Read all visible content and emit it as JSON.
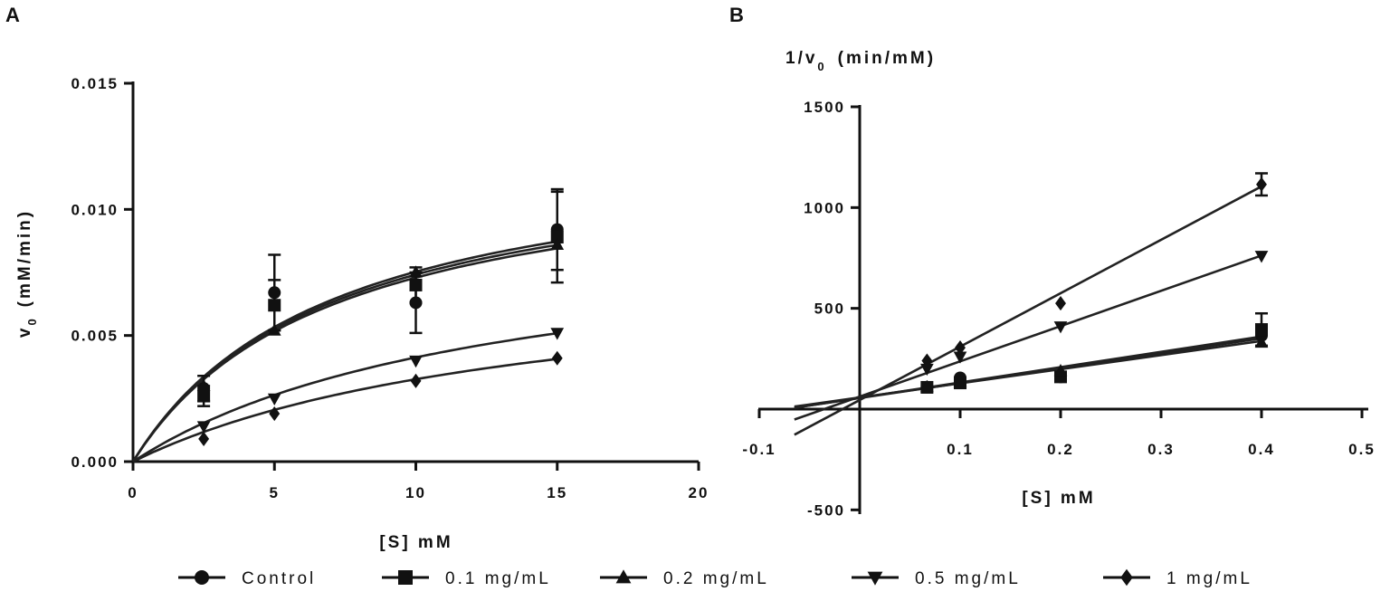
{
  "figure_labels": {
    "A": "A",
    "B": "B"
  },
  "legend": [
    {
      "name": "Control",
      "marker": "circle"
    },
    {
      "name": "0.1 mg/mL",
      "marker": "square"
    },
    {
      "name": "0.2 mg/mL",
      "marker": "triangle-up"
    },
    {
      "name": "0.5 mg/mL",
      "marker": "triangle-down"
    },
    {
      "name": "1 mg/mL",
      "marker": "diamond"
    }
  ],
  "chart_data": [
    {
      "panel": "A",
      "type": "scatter",
      "xlabel": "[S] mM",
      "ylabel": "v0 (mM/min)",
      "ylabel_main": "v",
      "ylabel_sub": "0",
      "ylabel_rest": "(mM/min)",
      "xlim": [
        0,
        20
      ],
      "ylim": [
        0,
        0.015
      ],
      "xticks": [
        0,
        5,
        10,
        15,
        20
      ],
      "xtick_labels": [
        "0",
        "5",
        "10",
        "15",
        "20"
      ],
      "yticks": [
        0,
        0.005,
        0.01,
        0.015
      ],
      "ytick_labels": [
        "0.000",
        "0.005",
        "0.010",
        "0.015"
      ],
      "x": [
        2.5,
        5,
        10,
        15
      ],
      "series": [
        {
          "name": "Control",
          "marker": "circle",
          "values": [
            0.0029,
            0.0067,
            0.0063,
            0.0092
          ],
          "errors": [
            0.0005,
            0.0015,
            0.0012,
            0.0016
          ],
          "fit": {
            "vmax": 0.0128,
            "km": 7.0
          }
        },
        {
          "name": "0.1 mg/mL",
          "marker": "square",
          "values": [
            0.0026,
            0.0062,
            0.007,
            0.0089
          ],
          "errors": [
            0.0004,
            0.001,
            0.0007,
            0.0018
          ],
          "fit": {
            "vmax": 0.0126,
            "km": 7.0
          }
        },
        {
          "name": "0.2 mg/mL",
          "marker": "triangle-up",
          "values": [
            0.003,
            0.0052,
            0.0075,
            0.0086
          ],
          "errors": [
            0,
            0,
            0,
            0
          ],
          "fit": {
            "vmax": 0.0124,
            "km": 7.0
          }
        },
        {
          "name": "0.5 mg/mL",
          "marker": "triangle-down",
          "values": [
            0.0014,
            0.0025,
            0.004,
            0.0051
          ],
          "errors": [
            0,
            0,
            0,
            0
          ],
          "fit": {
            "vmax": 0.0095,
            "km": 13.0
          }
        },
        {
          "name": "1 mg/mL",
          "marker": "diamond",
          "values": [
            0.0009,
            0.0019,
            0.0032,
            0.0041
          ],
          "errors": [
            0,
            0,
            0,
            0
          ],
          "fit": {
            "vmax": 0.008,
            "km": 14.5
          }
        }
      ]
    },
    {
      "panel": "B",
      "type": "scatter",
      "xlabel": "[S] mM",
      "ylabel": "1/v0 (min/mM)",
      "ylabel_main": "1/v",
      "ylabel_sub": "0",
      "ylabel_rest": "(min/mM)",
      "xlim": [
        -0.1,
        0.5
      ],
      "ylim": [
        -500,
        1500
      ],
      "xticks": [
        -0.1,
        0.1,
        0.2,
        0.3,
        0.4,
        0.5
      ],
      "xtick_labels": [
        "-0.1",
        "0.1",
        "0.2",
        "0.3",
        "0.4",
        "0.5"
      ],
      "yticks": [
        -500,
        500,
        1000,
        1500
      ],
      "ytick_labels": [
        "-500",
        "500",
        "1000",
        "1500"
      ],
      "x": [
        0.067,
        0.1,
        0.2,
        0.4
      ],
      "fit_range": [
        -0.065,
        0.4
      ],
      "series": [
        {
          "name": "Control",
          "marker": "circle",
          "values": [
            109,
            155,
            160,
            365
          ],
          "errors": [
            0,
            0,
            0,
            0
          ],
          "fit": {
            "slope": 760,
            "intercept": 56
          }
        },
        {
          "name": "0.1 mg/mL",
          "marker": "square",
          "values": [
            108,
            130,
            160,
            395
          ],
          "errors": [
            0,
            0,
            0,
            80
          ],
          "fit": {
            "slope": 740,
            "intercept": 55
          }
        },
        {
          "name": "0.2 mg/mL",
          "marker": "triangle-up",
          "values": [
            110,
            135,
            190,
            330
          ],
          "errors": [
            0,
            0,
            0,
            0
          ],
          "fit": {
            "slope": 700,
            "intercept": 58
          }
        },
        {
          "name": "0.5 mg/mL",
          "marker": "triangle-down",
          "values": [
            200,
            260,
            410,
            760
          ],
          "errors": [
            0,
            0,
            0,
            0
          ],
          "fit": {
            "slope": 1750,
            "intercept": 62
          }
        },
        {
          "name": "1 mg/mL",
          "marker": "diamond",
          "values": [
            240,
            305,
            525,
            1115
          ],
          "errors": [
            0,
            0,
            0,
            55
          ],
          "fit": {
            "slope": 2650,
            "intercept": 45
          }
        }
      ]
    }
  ]
}
